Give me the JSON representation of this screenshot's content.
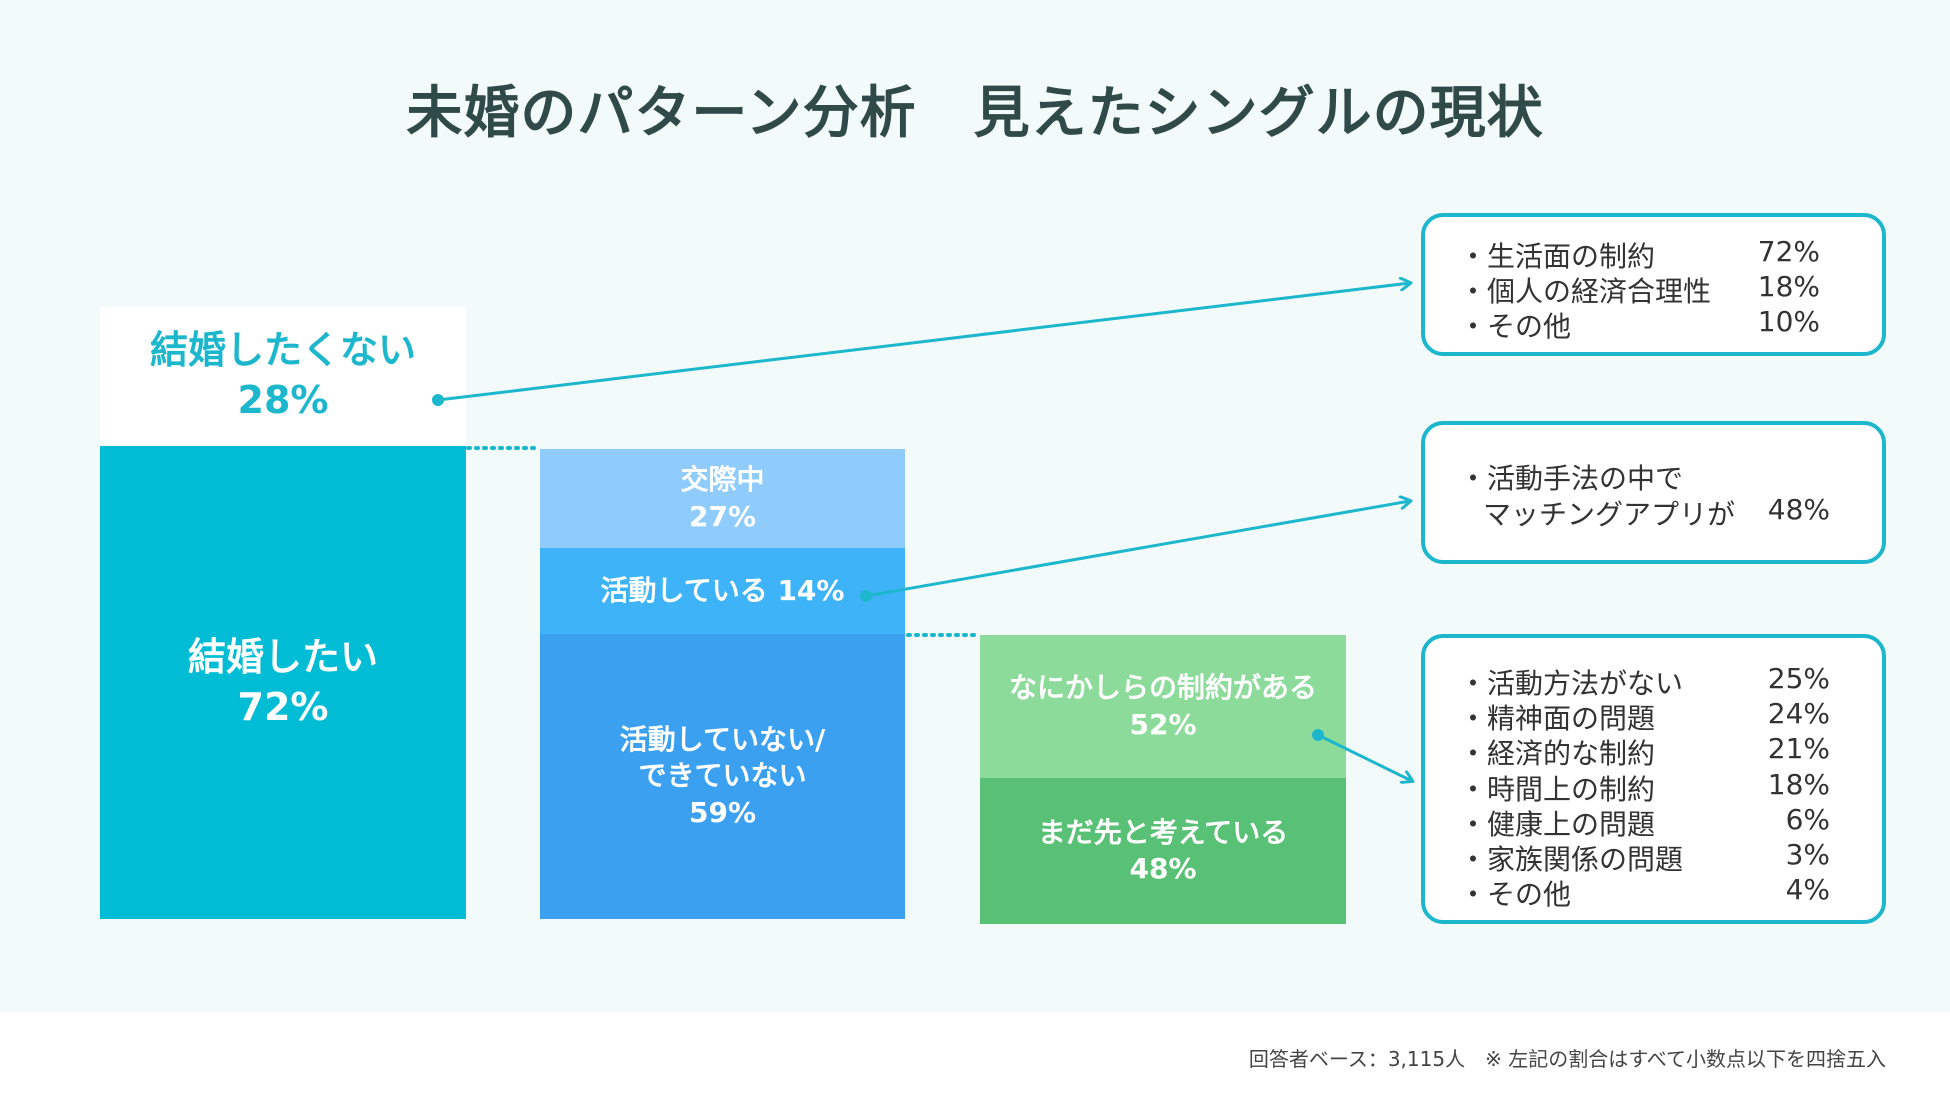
{
  "title": "未婚のパターン分析　見えたシングルの現状",
  "colors": {
    "teal": "#00bcd4",
    "light_blue": "#8fcbfb",
    "mid_blue": "#3fb3f8",
    "blue": "#3ba0f0",
    "light_green": "#8ddb9a",
    "green": "#59c175",
    "line": "#1cb7cc"
  },
  "chart_data": {
    "type": "bar",
    "stacked": true,
    "bars": [
      {
        "segments": [
          {
            "label": "結婚したい",
            "value": 72
          },
          {
            "label": "結婚したくない",
            "value": 28
          }
        ]
      },
      {
        "segments": [
          {
            "label": "活動していない/できていない",
            "value": 59
          },
          {
            "label": "活動している",
            "value": 14
          },
          {
            "label": "交際中",
            "value": 27
          }
        ]
      },
      {
        "segments": [
          {
            "label": "まだ先と考えている",
            "value": 48
          },
          {
            "label": "なにかしらの制約がある",
            "value": 52
          }
        ]
      }
    ],
    "callouts": [
      {
        "items": [
          {
            "label": "生活面の制約",
            "value": "72%"
          },
          {
            "label": "個人の経済合理性",
            "value": "18%"
          },
          {
            "label": "その他",
            "value": "10%"
          }
        ]
      },
      {
        "items": [
          {
            "label": "活動手法の中で",
            "value": ""
          },
          {
            "label": "マッチングアプリが",
            "value": "48%"
          }
        ]
      },
      {
        "items": [
          {
            "label": "活動方法がない",
            "value": "25%"
          },
          {
            "label": "精神面の問題",
            "value": "24%"
          },
          {
            "label": "経済的な制約",
            "value": "21%"
          },
          {
            "label": "時間上の制約",
            "value": "18%"
          },
          {
            "label": "健康上の問題",
            "value": "6%"
          },
          {
            "label": "家族関係の問題",
            "value": "3%"
          },
          {
            "label": "その他",
            "value": "4%"
          }
        ]
      }
    ]
  },
  "bar1": {
    "top_label": "結婚したくない",
    "top_pct": "28%",
    "bottom_label": "結婚したい",
    "bottom_pct": "72%"
  },
  "bar2": {
    "top_label": "交際中",
    "top_pct": "27%",
    "mid_label": "活動している 14%",
    "bottom_label_1": "活動していない/",
    "bottom_label_2": "できていない",
    "bottom_pct": "59%"
  },
  "bar3": {
    "top_label": "なにかしらの制約がある",
    "top_pct": "52%",
    "bottom_label": "まだ先と考えている",
    "bottom_pct": "48%"
  },
  "box1": {
    "rows": [
      {
        "label": "・生活面の制約",
        "value": "72%"
      },
      {
        "label": "・個人の経済合理性",
        "value": "18%"
      },
      {
        "label": "・その他",
        "value": "10%"
      }
    ]
  },
  "box2": {
    "line1": "・活動手法の中で",
    "line2": "マッチングアプリが",
    "value": "48%"
  },
  "box3": {
    "rows": [
      {
        "label": "・活動方法がない",
        "value": "25%"
      },
      {
        "label": "・精神面の問題",
        "value": "24%"
      },
      {
        "label": "・経済的な制約",
        "value": "21%"
      },
      {
        "label": "・時間上の制約",
        "value": "18%"
      },
      {
        "label": "・健康上の問題",
        "value": "6%"
      },
      {
        "label": "・家族関係の問題",
        "value": "3%"
      },
      {
        "label": "・その他",
        "value": "4%"
      }
    ]
  },
  "footnote": "回答者ベース：3,115人　※ 左記の割合はすべて小数点以下を四捨五入"
}
